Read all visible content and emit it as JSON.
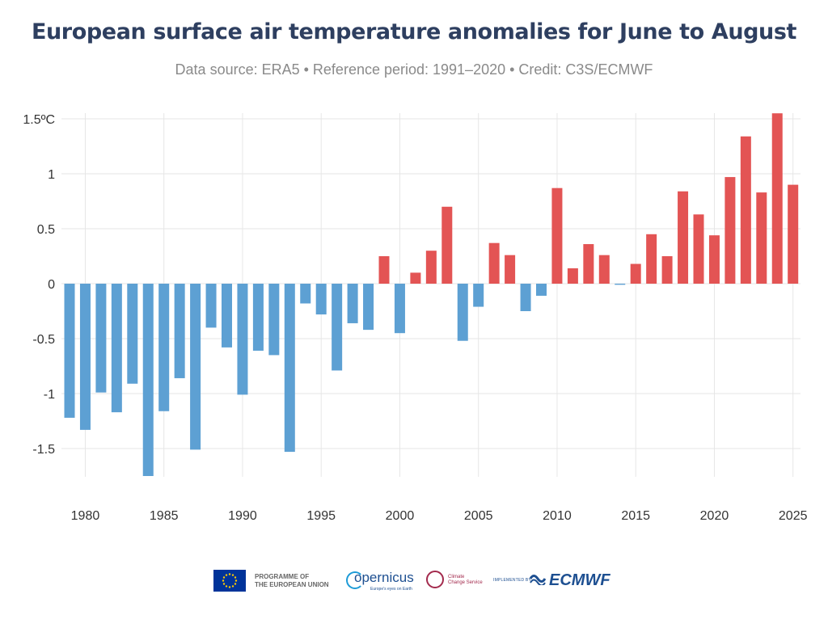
{
  "chart_data": {
    "type": "bar",
    "title": "European surface air temperature anomalies for June to August",
    "subtitle": "Data source: ERA5 • Reference period: 1991–2020 • Credit: C3S/ECMWF",
    "xlabel": "",
    "ylabel": "",
    "ylim": [
      -1.8,
      1.55
    ],
    "yticks": [
      {
        "value": 1.5,
        "label": "1.5ºC"
      },
      {
        "value": 1,
        "label": "1"
      },
      {
        "value": 0.5,
        "label": "0.5"
      },
      {
        "value": 0,
        "label": "0"
      },
      {
        "value": -0.5,
        "label": "-0.5"
      },
      {
        "value": -1,
        "label": "-1"
      },
      {
        "value": -1.5,
        "label": "-1.5"
      }
    ],
    "xticks": [
      1980,
      1985,
      1990,
      1995,
      2000,
      2005,
      2010,
      2015,
      2020,
      2025
    ],
    "x": [
      1979,
      1980,
      1981,
      1982,
      1983,
      1984,
      1985,
      1986,
      1987,
      1988,
      1989,
      1990,
      1991,
      1992,
      1993,
      1994,
      1995,
      1996,
      1997,
      1998,
      1999,
      2000,
      2001,
      2002,
      2003,
      2004,
      2005,
      2006,
      2007,
      2008,
      2009,
      2010,
      2011,
      2012,
      2013,
      2014,
      2015,
      2016,
      2017,
      2018,
      2019,
      2020,
      2021,
      2022,
      2023,
      2024,
      2025
    ],
    "values": [
      -1.22,
      -1.33,
      -0.99,
      -1.17,
      -0.91,
      -1.75,
      -1.16,
      -0.86,
      -1.51,
      -0.4,
      -0.58,
      -1.01,
      -0.61,
      -0.65,
      -1.53,
      -0.18,
      -0.28,
      -0.79,
      -0.36,
      -0.42,
      0.25,
      -0.45,
      0.1,
      0.3,
      0.7,
      -0.52,
      -0.21,
      0.37,
      0.26,
      -0.25,
      -0.11,
      0.87,
      0.14,
      0.36,
      0.26,
      -0.01,
      0.18,
      0.45,
      0.25,
      0.84,
      0.63,
      0.44,
      0.97,
      1.34,
      0.83,
      1.55,
      0.9
    ],
    "colors": {
      "positive": "#e35454",
      "negative": "#5da0d3",
      "grid": "#e6e6e6",
      "title": "#2e3f60",
      "subtitle": "#8a8a8a",
      "ticks": "#333333"
    }
  },
  "footer": {
    "eu_line1": "PROGRAMME OF",
    "eu_line2": "THE EUROPEAN UNION",
    "copernicus": "opernicus",
    "copernicus_tagline": "Europe's eyes on Earth",
    "ccs_line1": "Climate",
    "ccs_line2": "Change Service",
    "implemented_by": "IMPLEMENTED BY",
    "ecmwf": "ECMWF"
  }
}
